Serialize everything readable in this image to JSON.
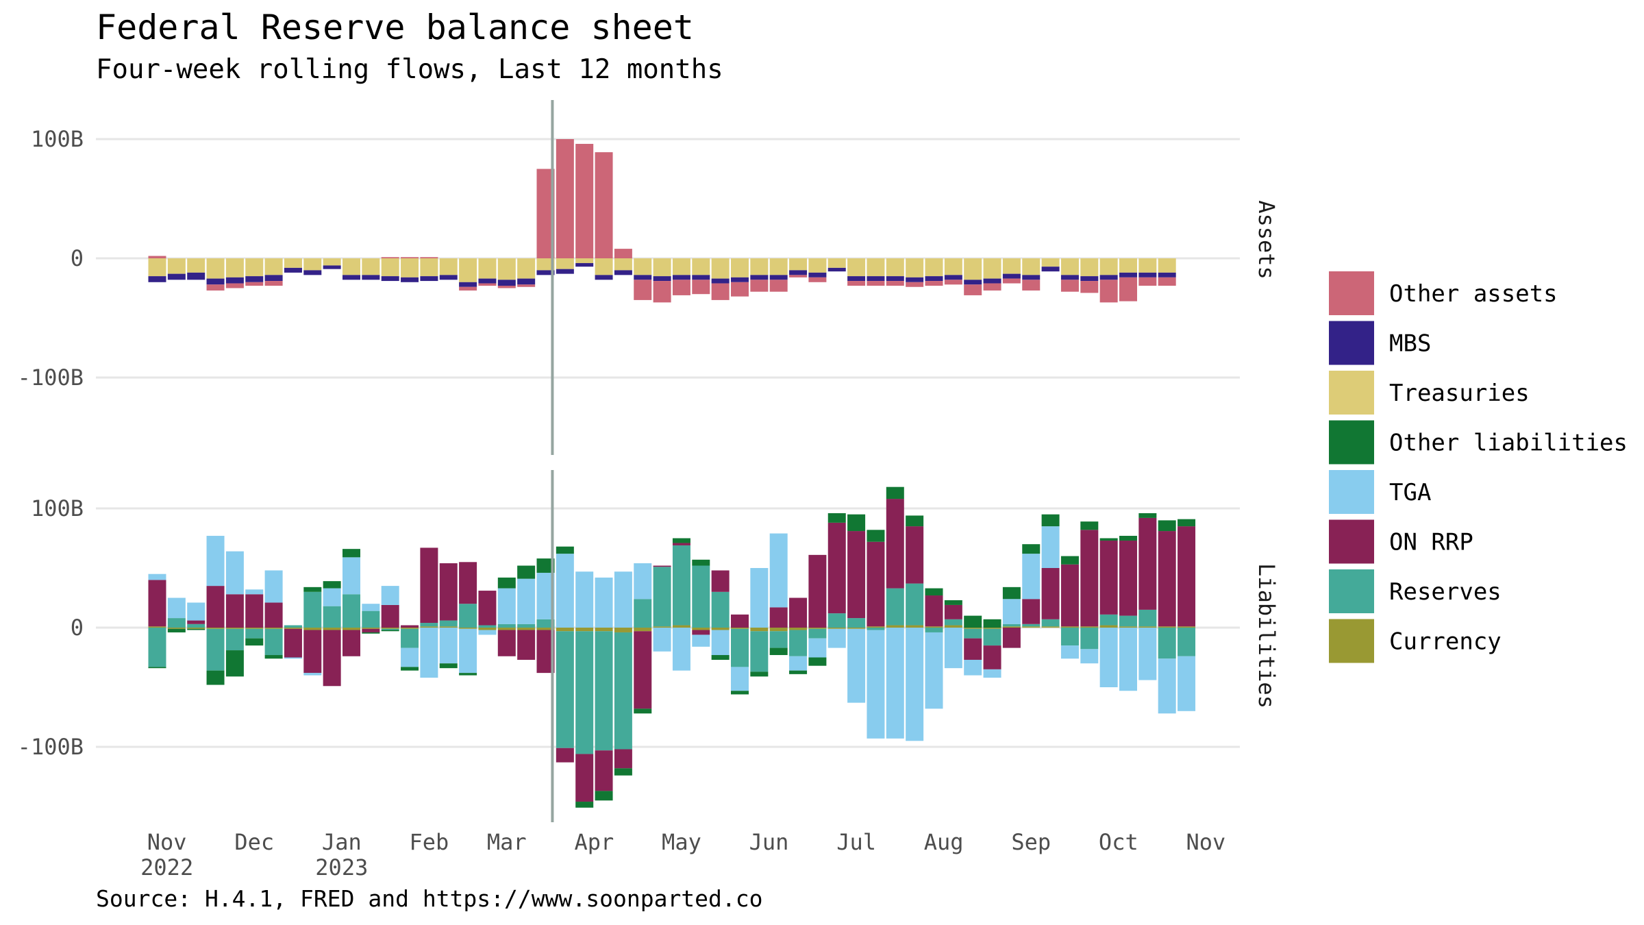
{
  "chart_data": {
    "type": "bar",
    "stacked": true,
    "title": "Federal Reserve balance sheet",
    "subtitle": "Four-week rolling flows, Last 12 months",
    "caption": "Source: H.4.1, FRED and https://www.soonparted.co",
    "grid": true,
    "legend_position": "right",
    "facets": [
      "Assets",
      "Liabilities"
    ],
    "ylim": [
      -150,
      130
    ],
    "y_ticks": [
      {
        "value": 100,
        "label": "100B"
      },
      {
        "value": 0,
        "label": "0"
      },
      {
        "value": -100,
        "label": "-100B"
      }
    ],
    "x_tick_labels": [
      {
        "month": "Nov",
        "year": "2022",
        "week": 0.5
      },
      {
        "month": "Dec",
        "year": "",
        "week": 5
      },
      {
        "month": "Jan",
        "year": "2023",
        "week": 9.5
      },
      {
        "month": "Feb",
        "year": "",
        "week": 14
      },
      {
        "month": "Mar",
        "year": "",
        "week": 18
      },
      {
        "month": "Apr",
        "year": "",
        "week": 22.5
      },
      {
        "month": "May",
        "year": "",
        "week": 27
      },
      {
        "month": "Jun",
        "year": "",
        "week": 31.5
      },
      {
        "month": "Jul",
        "year": "",
        "week": 36
      },
      {
        "month": "Aug",
        "year": "",
        "week": 40.5
      },
      {
        "month": "Sep",
        "year": "",
        "week": 45
      },
      {
        "month": "Oct",
        "year": "",
        "week": 49.5
      },
      {
        "month": "Nov",
        "year": "",
        "week": 54
      }
    ],
    "event_line_week": 20.35,
    "legend": [
      {
        "name": "Other assets",
        "color": "#CC6677"
      },
      {
        "name": "MBS",
        "color": "#332288"
      },
      {
        "name": "Treasuries",
        "color": "#DDCC77"
      },
      {
        "name": "Other liabilities",
        "color": "#117733"
      },
      {
        "name": "TGA",
        "color": "#88CCEE"
      },
      {
        "name": "ON RRP",
        "color": "#882255"
      },
      {
        "name": "Reserves",
        "color": "#44AA99"
      },
      {
        "name": "Currency",
        "color": "#999933"
      }
    ],
    "series": {
      "Treasuries": [
        -15,
        -13,
        -12,
        -17,
        -16,
        -15,
        -14,
        -8,
        -10,
        -6,
        -14,
        -14,
        -15,
        -16,
        -15,
        -14,
        -20,
        -17,
        -18,
        -17,
        -10,
        -9,
        -4,
        -14,
        -10,
        -14,
        -15,
        -14,
        -14,
        -17,
        -16,
        -14,
        -14,
        -10,
        -12,
        -8,
        -15,
        -15,
        -15,
        -16,
        -15,
        -14,
        -18,
        -17,
        -13,
        -14,
        -7,
        -14,
        -15,
        -14,
        -12,
        -12,
        -12
      ],
      "MBS": [
        -5,
        -5,
        -6,
        -5,
        -5,
        -5,
        -5,
        -4,
        -4,
        -3,
        -4,
        -4,
        -4,
        -4,
        -4,
        -4,
        -4,
        -4,
        -5,
        -5,
        -4,
        -4,
        -3,
        -4,
        -4,
        -4,
        -4,
        -4,
        -4,
        -4,
        -4,
        -4,
        -4,
        -4,
        -4,
        -3,
        -4,
        -4,
        -4,
        -4,
        -4,
        -4,
        -4,
        -4,
        -4,
        -4,
        -4,
        -4,
        -4,
        -4,
        -4,
        -4,
        -4
      ],
      "Other assets": [
        2,
        0,
        0,
        -5,
        -4,
        -3,
        -4,
        0,
        0,
        0,
        0,
        0,
        1,
        1,
        1,
        0,
        -3,
        -2,
        -2,
        -2,
        75,
        100,
        96,
        89,
        8,
        -17,
        -18,
        -13,
        -12,
        -14,
        -12,
        -10,
        -10,
        -2,
        -4,
        0,
        -4,
        -4,
        -4,
        -4,
        -4,
        -4,
        -9,
        -6,
        -4,
        -9,
        0,
        -10,
        -10,
        -19,
        -20,
        -7,
        -7
      ],
      "Reserves": [
        -33,
        8,
        3,
        -35,
        -18,
        -8,
        -22,
        2,
        30,
        18,
        28,
        14,
        -1,
        -16,
        3,
        5,
        20,
        2,
        3,
        3,
        7,
        -98,
        -103,
        -100,
        -98,
        24,
        50,
        67,
        52,
        30,
        -32,
        -34,
        -14,
        -22,
        -8,
        12,
        8,
        -2,
        31,
        35,
        -4,
        5,
        -8,
        -14,
        2,
        2,
        6,
        -15,
        -18,
        9,
        9,
        14,
        -26,
        -24
      ],
      "Other liabilities": [
        -1,
        -3,
        -1,
        -12,
        -22,
        -6,
        -3,
        0,
        4,
        6,
        7,
        -1,
        -1,
        -3,
        0,
        -4,
        -2,
        0,
        9,
        11,
        12,
        6,
        -5,
        -8,
        -6,
        -4,
        0,
        4,
        5,
        -4,
        -3,
        -4,
        -6,
        -3,
        -7,
        8,
        14,
        10,
        10,
        9,
        6,
        4,
        10,
        7,
        10,
        8,
        10,
        7,
        7,
        2,
        4,
        4,
        9,
        6
      ],
      "TGA": [
        5,
        17,
        15,
        42,
        36,
        4,
        27,
        -1,
        -2,
        15,
        31,
        6,
        16,
        -16,
        -42,
        -30,
        -37,
        -4,
        30,
        38,
        39,
        62,
        47,
        42,
        47,
        30,
        -20,
        -36,
        -10,
        -21,
        -20,
        50,
        62,
        -12,
        -16,
        -16,
        -62,
        -91,
        -93,
        -95,
        -64,
        -34,
        -13,
        -7,
        21,
        38,
        35,
        -11,
        -12,
        -50,
        -53,
        -44,
        -46,
        -46,
        -44
      ],
      "ON RRP": [
        39,
        0,
        3,
        35,
        28,
        28,
        21,
        -24,
        -36,
        -47,
        -22,
        -3,
        19,
        2,
        63,
        48,
        35,
        29,
        -22,
        -25,
        -36,
        -12,
        -40,
        -34,
        -16,
        -65,
        1,
        2,
        -4,
        18,
        11,
        0,
        17,
        25,
        61,
        76,
        73,
        71,
        75,
        48,
        26,
        12,
        -18,
        -20,
        -17,
        21,
        43,
        52,
        81,
        62,
        63,
        77,
        80,
        84
      ],
      "Currency": [
        1,
        -1,
        -1,
        -1,
        -1,
        -1,
        -1,
        -1,
        -2,
        -2,
        -2,
        -1,
        -1,
        -1,
        1,
        1,
        -1,
        -2,
        -2,
        -2,
        -2,
        -3,
        -3,
        -3,
        -4,
        -3,
        1,
        2,
        -2,
        -2,
        -1,
        -3,
        -3,
        -2,
        -1,
        -1,
        -1,
        1,
        2,
        2,
        1,
        2,
        -1,
        -1,
        1,
        1,
        1,
        1,
        1,
        2,
        1,
        1,
        1,
        1
      ]
    }
  }
}
